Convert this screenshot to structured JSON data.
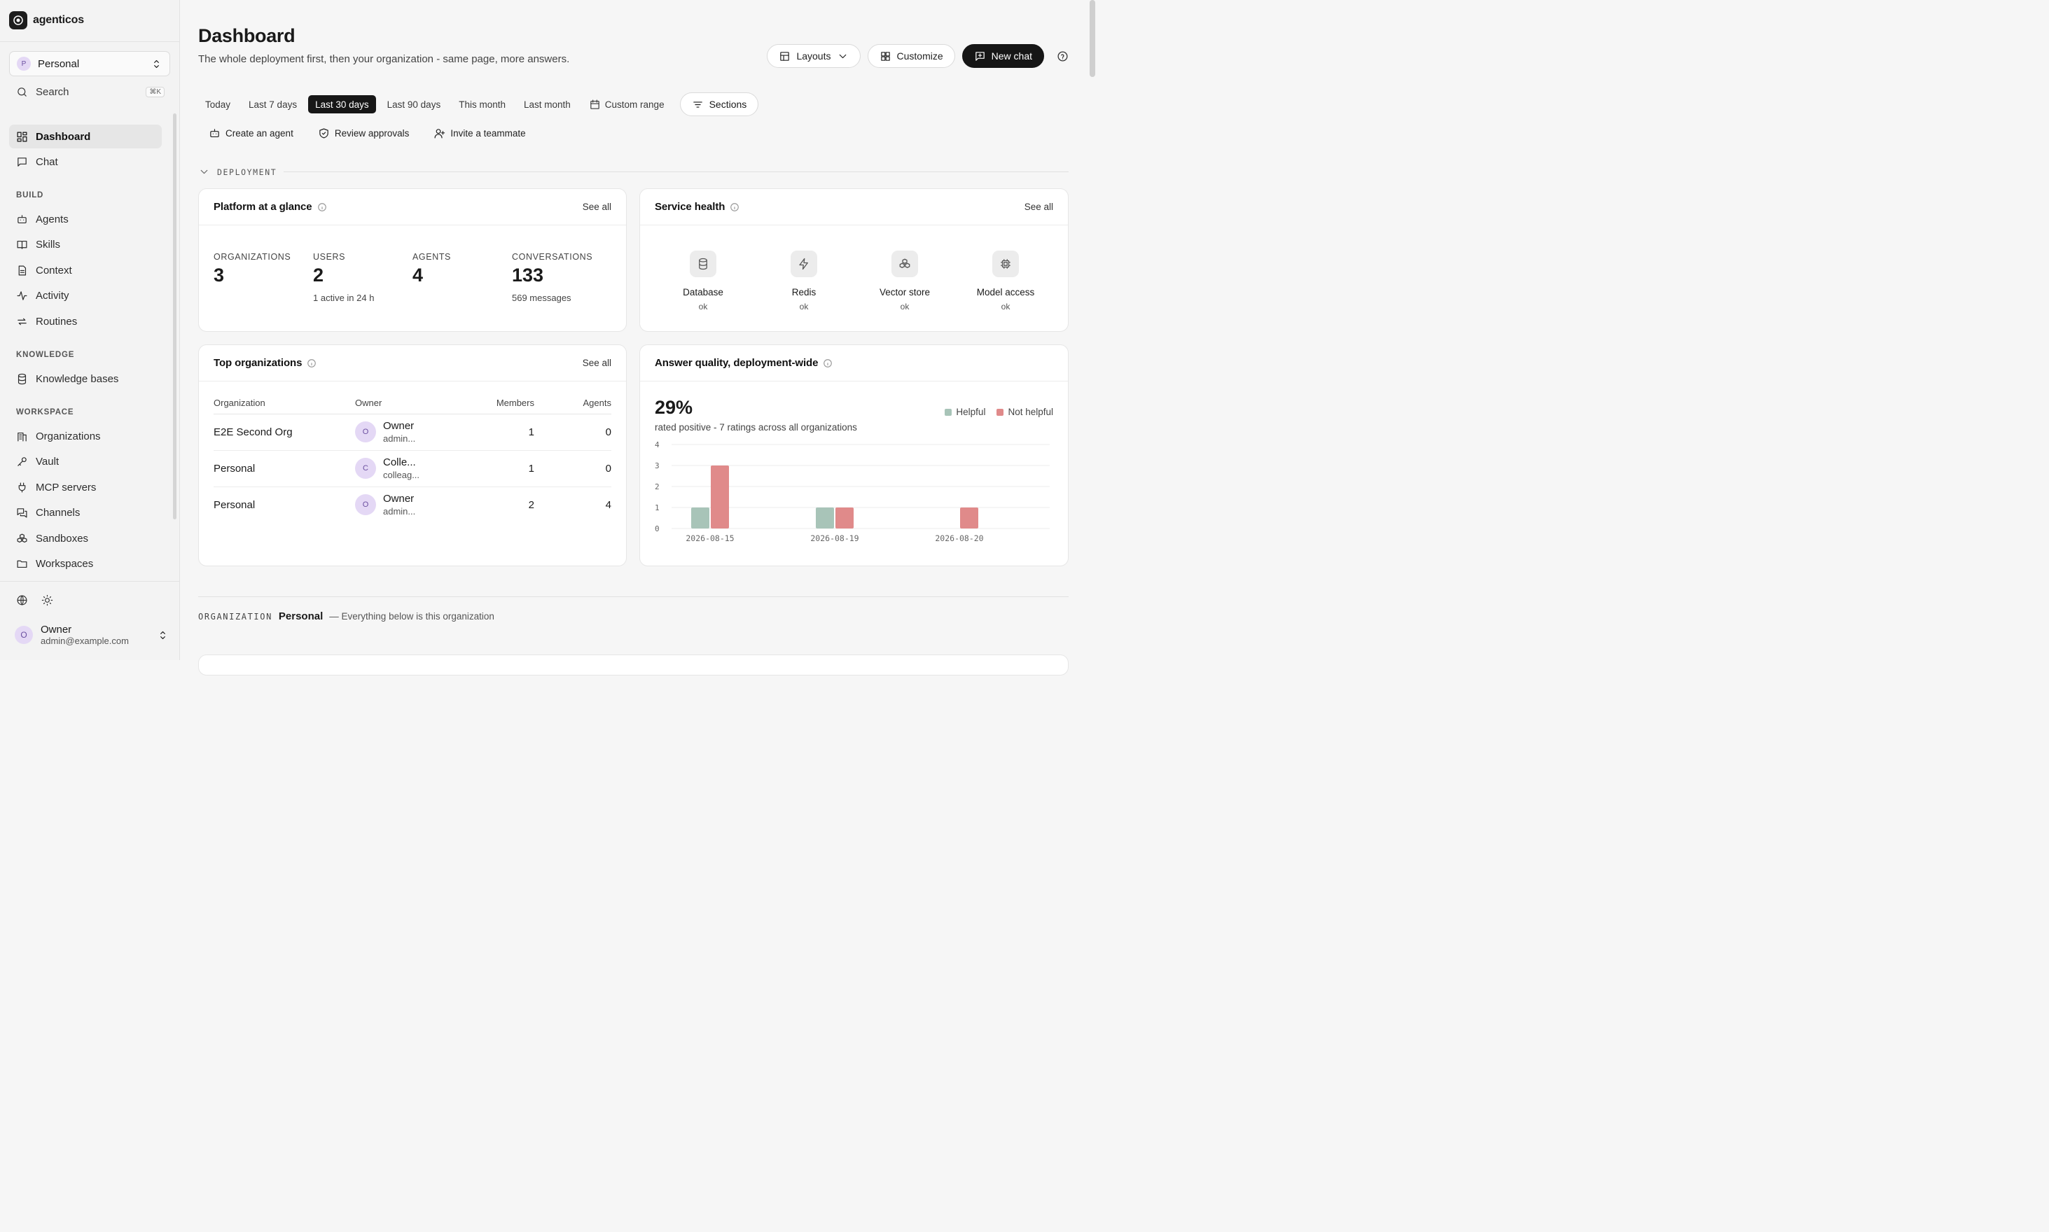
{
  "brand": {
    "name": "agenticos"
  },
  "org_switcher": {
    "initial": "P",
    "label": "Personal"
  },
  "search": {
    "label": "Search",
    "shortcut": "⌘K"
  },
  "nav": {
    "main": [
      {
        "label": "Dashboard",
        "icon": "grid-icon"
      },
      {
        "label": "Chat",
        "icon": "chat-icon"
      }
    ],
    "build_title": "BUILD",
    "build": [
      {
        "label": "Agents",
        "icon": "bot-icon"
      },
      {
        "label": "Skills",
        "icon": "book-icon"
      },
      {
        "label": "Context",
        "icon": "doc-icon"
      },
      {
        "label": "Activity",
        "icon": "activity-icon"
      },
      {
        "label": "Routines",
        "icon": "repeat-icon"
      }
    ],
    "knowledge_title": "KNOWLEDGE",
    "knowledge": [
      {
        "label": "Knowledge bases",
        "icon": "database-icon"
      }
    ],
    "workspace_title": "WORKSPACE",
    "workspace": [
      {
        "label": "Organizations",
        "icon": "building-icon"
      },
      {
        "label": "Vault",
        "icon": "key-icon"
      },
      {
        "label": "MCP servers",
        "icon": "plug-icon"
      },
      {
        "label": "Channels",
        "icon": "channels-icon"
      },
      {
        "label": "Sandboxes",
        "icon": "boxes-icon"
      },
      {
        "label": "Workspaces",
        "icon": "folder-icon"
      }
    ]
  },
  "user": {
    "initial": "O",
    "name": "Owner",
    "email": "admin@example.com"
  },
  "header": {
    "title": "Dashboard",
    "subtitle": "The whole deployment first, then your organization - same page, more answers.",
    "layouts": "Layouts",
    "customize": "Customize",
    "new_chat": "New chat"
  },
  "ranges": [
    "Today",
    "Last 7 days",
    "Last 30 days",
    "Last 90 days",
    "This month",
    "Last month"
  ],
  "active_range": "Last 30 days",
  "custom_range": "Custom range",
  "sections_btn": "Sections",
  "quick_actions": [
    "Create an agent",
    "Review approvals",
    "Invite a teammate"
  ],
  "deployment_label": "DEPLOYMENT",
  "platform": {
    "title": "Platform at a glance",
    "see_all": "See all",
    "stats": [
      {
        "key": "ORGANIZATIONS",
        "value": "3",
        "sub": ""
      },
      {
        "key": "USERS",
        "value": "2",
        "sub": "1 active in 24 h"
      },
      {
        "key": "AGENTS",
        "value": "4",
        "sub": ""
      },
      {
        "key": "CONVERSATIONS",
        "value": "133",
        "sub": "569 messages"
      }
    ]
  },
  "health": {
    "title": "Service health",
    "see_all": "See all",
    "services": [
      {
        "name": "Database",
        "status": "ok",
        "icon": "database-icon"
      },
      {
        "name": "Redis",
        "status": "ok",
        "icon": "bolt-icon"
      },
      {
        "name": "Vector store",
        "status": "ok",
        "icon": "boxes-icon"
      },
      {
        "name": "Model access",
        "status": "ok",
        "icon": "chip-icon"
      }
    ]
  },
  "top_orgs": {
    "title": "Top organizations",
    "see_all": "See all",
    "columns": [
      "Organization",
      "Owner",
      "Members",
      "Agents"
    ],
    "rows": [
      {
        "org": "E2E Second Org",
        "initial": "O",
        "owner": "Owner",
        "owner_sub": "admin...",
        "members": "1",
        "agents": "0"
      },
      {
        "org": "Personal",
        "initial": "C",
        "owner": "Colle...",
        "owner_sub": "colleag...",
        "members": "1",
        "agents": "0"
      },
      {
        "org": "Personal",
        "initial": "O",
        "owner": "Owner",
        "owner_sub": "admin...",
        "members": "2",
        "agents": "4"
      }
    ]
  },
  "quality": {
    "title": "Answer quality, deployment-wide",
    "big": "29%",
    "sub": "rated positive - 7 ratings across all organizations"
  },
  "chart_data": {
    "type": "bar",
    "categories": [
      "2026-08-15",
      "2026-08-19",
      "2026-08-20"
    ],
    "series": [
      {
        "name": "Helpful",
        "values": [
          1,
          1,
          0
        ],
        "color": "#a8c4b8"
      },
      {
        "name": "Not helpful",
        "values": [
          3,
          1,
          1
        ],
        "color": "#e08a8a"
      }
    ],
    "ylim": [
      0,
      4
    ],
    "yticks": [
      0,
      1,
      2,
      3,
      4
    ],
    "legend": "top-right",
    "grid": true
  },
  "org_section": {
    "label": "ORGANIZATION",
    "name": "Personal",
    "desc": "— Everything below is this organization"
  }
}
